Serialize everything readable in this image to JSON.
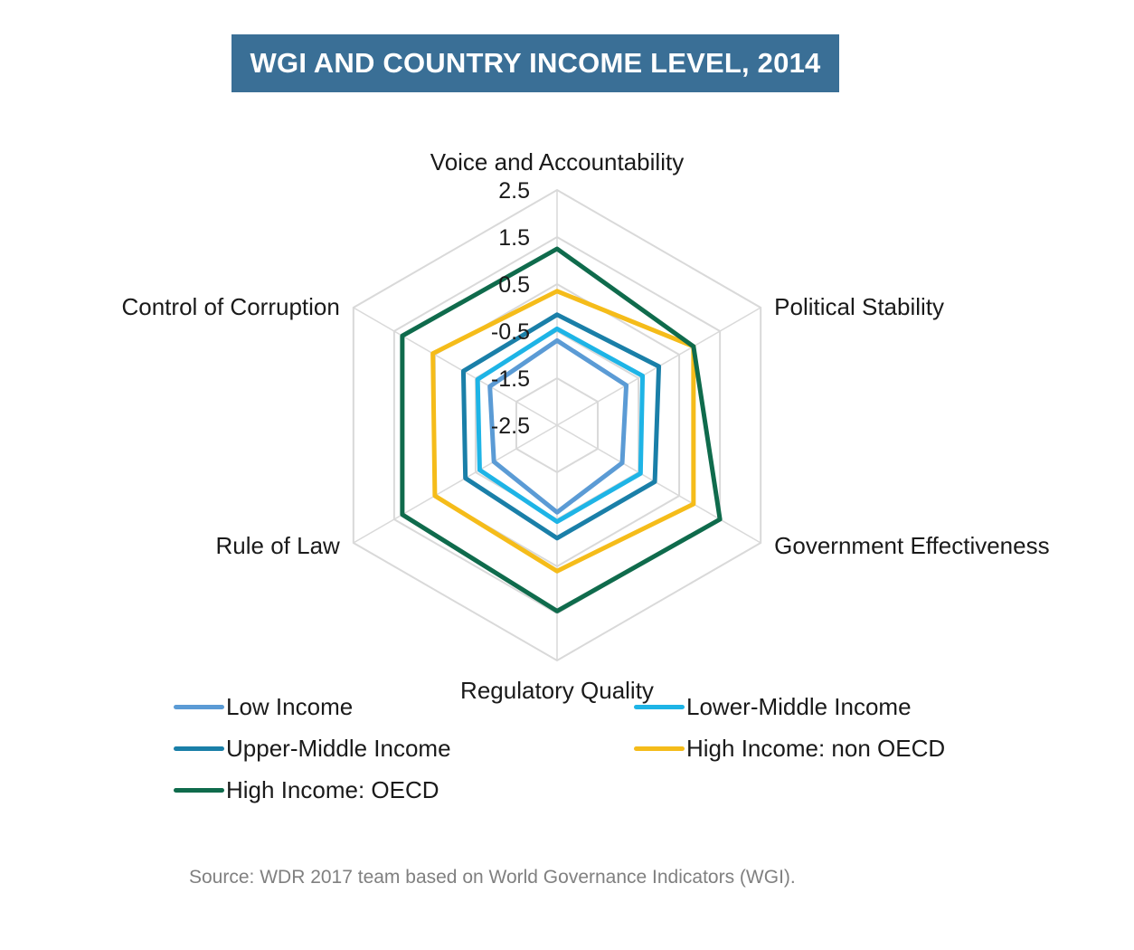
{
  "chart_data": {
    "type": "radar",
    "title": "WGI AND COUNTRY INCOME LEVEL, 2014",
    "axes": [
      "Voice and Accountability",
      "Political Stability",
      "Government Effectiveness",
      "Regulatory Quality",
      "Rule of Law",
      "Control of Corruption"
    ],
    "rlim": [
      -2.5,
      2.5
    ],
    "ticks": [
      "2.5",
      "1.5",
      "0.5",
      "-0.5",
      "-1.5",
      "-2.5"
    ],
    "tick_values": [
      2.5,
      1.5,
      0.5,
      -0.5,
      -1.5,
      -2.5
    ],
    "series": [
      {
        "name": "Low Income",
        "color": "#5b9bd5",
        "values": [
          -0.7,
          -0.8,
          -0.9,
          -0.65,
          -0.95,
          -0.85
        ]
      },
      {
        "name": "Lower-Middle Income",
        "color": "#1eb4e6",
        "values": [
          -0.45,
          -0.4,
          -0.45,
          -0.45,
          -0.6,
          -0.55
        ]
      },
      {
        "name": "Upper-Middle Income",
        "color": "#1a7fa8",
        "values": [
          -0.15,
          0.0,
          -0.1,
          -0.1,
          -0.25,
          -0.2
        ]
      },
      {
        "name": "High Income: non OECD",
        "color": "#f5bc1a",
        "values": [
          0.35,
          0.85,
          0.85,
          0.6,
          0.5,
          0.55
        ]
      },
      {
        "name": "High Income: OECD",
        "color": "#0f6b4c",
        "values": [
          1.25,
          0.85,
          1.5,
          1.45,
          1.3,
          1.3
        ]
      }
    ],
    "legend_position": "bottom",
    "source": "Source: WDR 2017 team based on World Governance Indicators (WGI)."
  }
}
